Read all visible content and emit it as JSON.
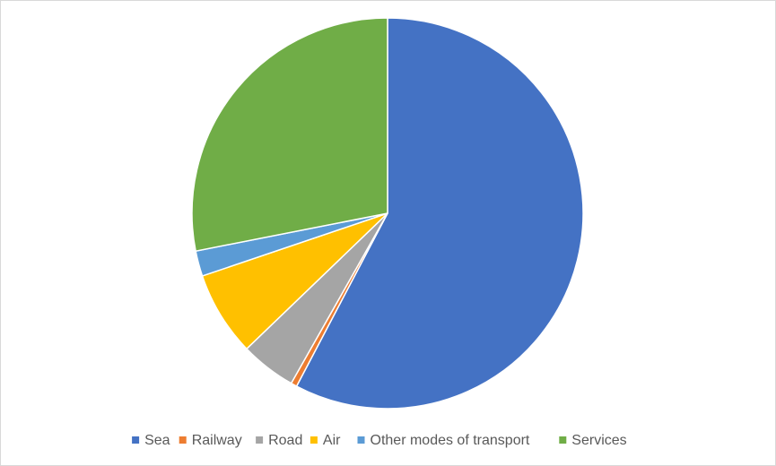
{
  "chart_data": {
    "type": "pie",
    "categories": [
      "Sea",
      "Railway",
      "Road",
      "Air",
      "Other modes of transport",
      "Services"
    ],
    "values": [
      57.7,
      0.5,
      4.6,
      7.0,
      2.1,
      28.1
    ],
    "colors": [
      "#4472c4",
      "#ed7d31",
      "#a5a5a5",
      "#ffc000",
      "#5b9bd5",
      "#70ad47"
    ],
    "legend": "bottom"
  }
}
